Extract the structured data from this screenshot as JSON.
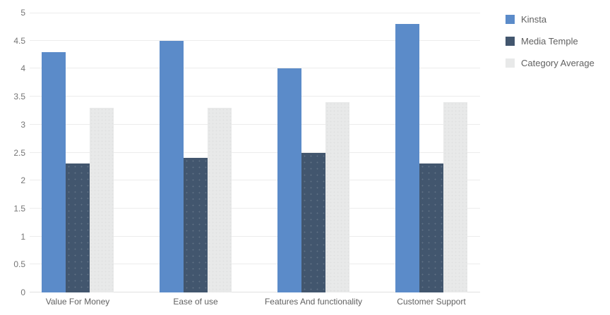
{
  "chart_data": {
    "type": "bar",
    "title": "",
    "categories": [
      "Value For Money",
      "Ease of use",
      "Features And functionality",
      "Customer Support"
    ],
    "series": [
      {
        "name": "Kinsta",
        "color": "#5b8bc9",
        "values": [
          4.3,
          4.5,
          4.0,
          4.8
        ]
      },
      {
        "name": "Media Temple",
        "color": "#42566e",
        "values": [
          2.3,
          2.4,
          2.5,
          2.3
        ]
      },
      {
        "name": "Category Average",
        "color": "#e8e9e9",
        "values": [
          3.3,
          3.3,
          3.4,
          3.4
        ]
      }
    ],
    "ylim": [
      0,
      5
    ],
    "yticks": [
      0,
      0.5,
      1,
      1.5,
      2,
      2.5,
      3,
      3.5,
      4,
      4.5,
      5
    ],
    "xlabel": "",
    "ylabel": "",
    "grid": true,
    "legend_position": "right"
  },
  "colors": {
    "background": "#ffffff",
    "grid_line": "#ececec",
    "zero_line": "#e0e0e0",
    "axis_tick_label": "#757575",
    "category_label": "#616161",
    "legend_label": "#616161"
  }
}
